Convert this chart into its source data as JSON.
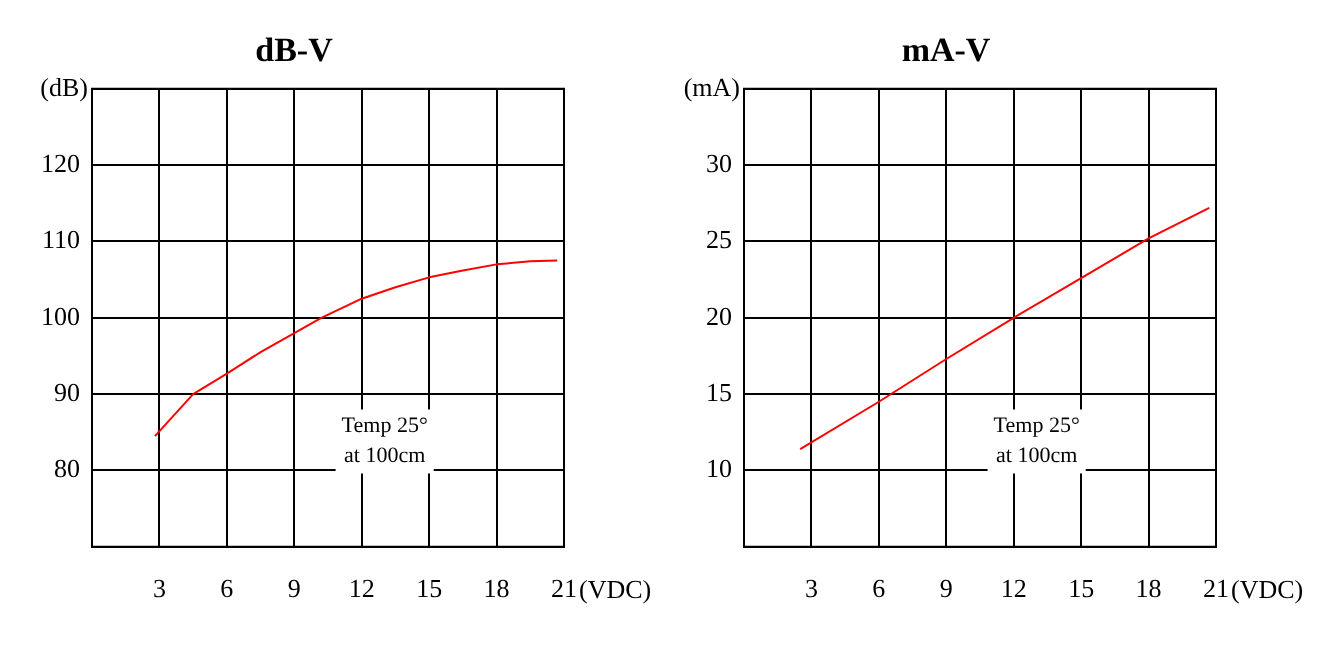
{
  "chart_data": [
    {
      "type": "line",
      "title": "dB-V",
      "xlabel": "(VDC)",
      "ylabel": "(dB)",
      "annotations": [
        "Temp 25°\nat 100cm"
      ],
      "grid": true,
      "xlim": [
        0,
        21
      ],
      "xticks": [
        {
          "value": 0,
          "label": null
        },
        3,
        6,
        9,
        12,
        15,
        18,
        21
      ],
      "ylim": [
        70,
        130
      ],
      "yticks": [
        {
          "value": 70,
          "label": null
        },
        80,
        90,
        100,
        110,
        120,
        {
          "value": 130,
          "label": null
        }
      ],
      "series": [
        {
          "color": "#ff0000",
          "x": [
            2.8,
            4.5,
            6,
            7.5,
            9,
            10.2,
            12,
            13.5,
            15,
            16.5,
            18,
            19.5,
            20.7
          ],
          "values": [
            84.5,
            90,
            92.7,
            95.5,
            98,
            100,
            102.5,
            104,
            105.3,
            106.2,
            107,
            107.4,
            107.5
          ]
        }
      ]
    },
    {
      "type": "line",
      "title": "mA-V",
      "xlabel": "(VDC)",
      "ylabel": "(mA)",
      "annotations": [
        "Temp 25°\nat 100cm"
      ],
      "grid": true,
      "xlim": [
        0,
        21
      ],
      "xticks": [
        {
          "value": 0,
          "label": null
        },
        3,
        6,
        9,
        12,
        15,
        18,
        21
      ],
      "ylim": [
        5,
        35
      ],
      "yticks": [
        {
          "value": 5,
          "label": null
        },
        10,
        15,
        20,
        25,
        30,
        {
          "value": 35,
          "label": null
        }
      ],
      "series": [
        {
          "color": "#ff0000",
          "x": [
            2.5,
            6,
            9,
            12,
            15,
            18,
            20.7
          ],
          "values": [
            11.4,
            14.5,
            17.3,
            20,
            22.6,
            25.2,
            27.2
          ]
        }
      ]
    }
  ]
}
